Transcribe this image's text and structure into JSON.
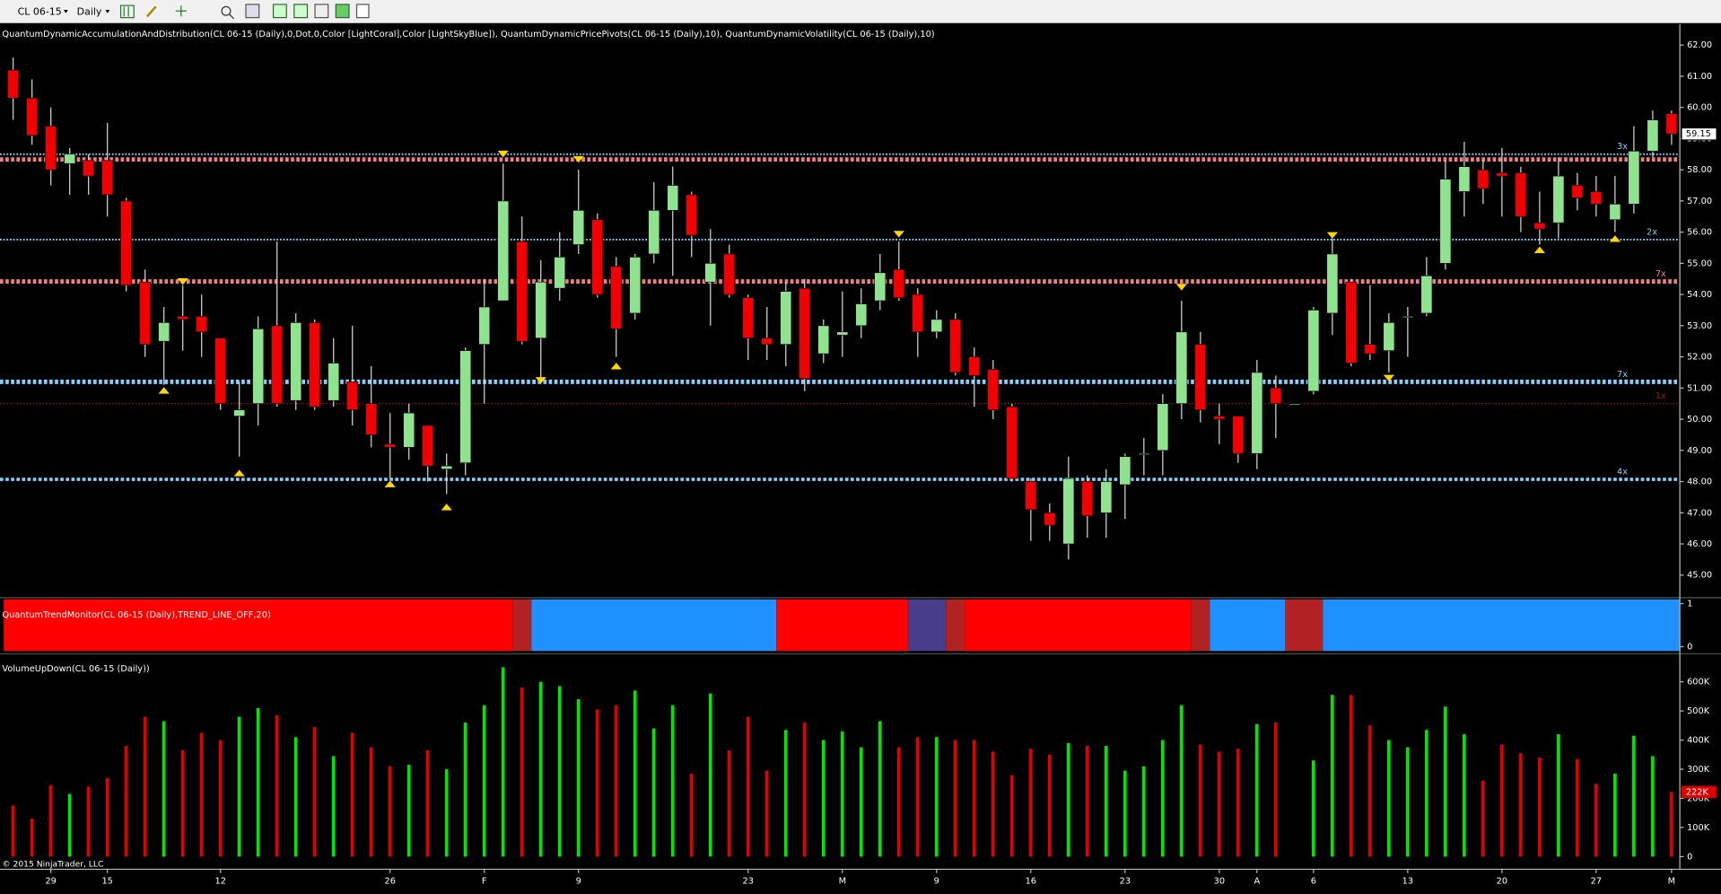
{
  "toolbar": {
    "instrument": "CL 06-15",
    "period": "Daily"
  },
  "footer": "© 2015 NinjaTrader, LLC",
  "chart_data": [
    {
      "type": "candlestick",
      "title": "QuantumDynamicAccumulationAndDistribution(CL 06-15 (Daily),0,Dot,0,Color [LightCoral],Color [LightSkyBlue]), QuantumDynamicPricePivots(CL 06-15 (Daily),10), QuantumDynamicVolatility(CL 06-15 (Daily),10)",
      "categories": [
        null,
        null,
        "29",
        null,
        null,
        "15",
        null,
        null,
        null,
        null,
        null,
        "12",
        null,
        null,
        null,
        null,
        null,
        null,
        null,
        null,
        "26",
        null,
        null,
        null,
        null,
        "F",
        null,
        null,
        null,
        null,
        "9",
        null,
        null,
        null,
        null,
        null,
        null,
        null,
        null,
        "23",
        null,
        null,
        null,
        null,
        "M",
        null,
        null,
        null,
        null,
        "9",
        null,
        null,
        null,
        null,
        "16",
        null,
        null,
        null,
        null,
        "23",
        null,
        null,
        null,
        null,
        "30",
        null,
        "A",
        null,
        null,
        "6",
        null,
        null,
        null,
        null,
        "13",
        null,
        null,
        null,
        null,
        "20",
        null,
        null,
        null,
        null,
        "27",
        null,
        null,
        null,
        "M"
      ],
      "open": [
        61.2,
        60.3,
        59.4,
        58.2,
        58.3,
        58.3,
        57.0,
        54.4,
        52.5,
        53.3,
        53.3,
        52.6,
        50.1,
        50.5,
        53.0,
        50.6,
        53.1,
        50.6,
        51.2,
        50.5,
        49.2,
        49.1,
        49.8,
        48.4,
        48.6,
        52.4,
        53.8,
        55.7,
        52.6,
        54.2,
        55.6,
        56.4,
        54.9,
        53.4,
        55.3,
        56.7,
        57.2,
        54.4,
        55.3,
        53.9,
        52.6,
        52.4,
        54.2,
        52.1,
        52.7,
        53.0,
        53.8,
        54.8,
        54.0,
        52.8,
        53.2,
        52.0,
        51.6,
        50.4,
        48.0,
        47.0,
        46.0,
        48.0,
        47.0,
        47.9,
        48.9,
        49.0,
        50.5,
        52.4,
        50.1,
        50.1,
        48.9,
        51.0,
        50.5,
        50.9,
        53.4,
        54.4,
        52.4,
        52.2,
        53.3,
        53.4,
        55.0,
        57.3,
        58.0,
        57.9,
        57.9,
        56.3,
        56.3,
        57.5,
        57.3,
        56.4,
        56.9,
        58.6,
        59.8
      ],
      "high": [
        61.6,
        60.9,
        60.0,
        58.7,
        58.5,
        59.5,
        57.1,
        54.8,
        53.6,
        54.3,
        54.0,
        52.6,
        51.2,
        53.3,
        55.7,
        53.4,
        53.2,
        52.6,
        53.0,
        51.7,
        50.2,
        50.5,
        49.8,
        48.9,
        52.3,
        54.5,
        58.2,
        56.5,
        55.1,
        56.0,
        58.0,
        56.6,
        55.2,
        55.3,
        57.6,
        58.1,
        57.3,
        56.1,
        55.6,
        54.0,
        53.6,
        54.4,
        54.5,
        53.2,
        54.1,
        54.2,
        55.3,
        55.7,
        54.2,
        53.5,
        53.4,
        52.3,
        51.9,
        50.5,
        48.1,
        47.3,
        48.8,
        48.2,
        48.4,
        48.9,
        49.4,
        50.8,
        53.8,
        52.8,
        50.5,
        50.1,
        51.9,
        51.4,
        50.5,
        53.6,
        55.8,
        54.5,
        54.3,
        53.4,
        53.6,
        55.2,
        58.3,
        58.9,
        58.3,
        58.7,
        58.1,
        57.3,
        58.4,
        57.9,
        57.8,
        57.8,
        59.4,
        59.9,
        59.9
      ],
      "low": [
        59.6,
        58.8,
        57.5,
        57.2,
        57.2,
        56.5,
        54.1,
        52.0,
        51.1,
        52.2,
        52.0,
        50.3,
        48.8,
        49.8,
        50.4,
        50.3,
        50.3,
        50.4,
        49.8,
        49.1,
        48.1,
        48.7,
        48.0,
        47.6,
        48.2,
        50.5,
        53.8,
        52.4,
        51.2,
        53.8,
        55.3,
        53.9,
        52.0,
        53.2,
        55.0,
        54.6,
        55.2,
        53.0,
        53.9,
        51.9,
        51.9,
        51.7,
        50.9,
        51.8,
        52.0,
        52.6,
        53.5,
        53.8,
        52.0,
        52.6,
        51.4,
        50.4,
        50.0,
        48.0,
        46.1,
        46.1,
        45.5,
        46.2,
        46.2,
        46.8,
        48.2,
        48.2,
        50.0,
        49.9,
        49.2,
        48.6,
        48.4,
        49.4,
        50.5,
        50.8,
        52.7,
        51.7,
        51.9,
        51.5,
        52.0,
        53.3,
        54.8,
        56.5,
        56.9,
        56.5,
        56.0,
        55.6,
        55.8,
        56.7,
        56.5,
        56.0,
        56.6,
        58.4,
        58.8
      ],
      "close": [
        60.3,
        59.1,
        58.0,
        58.5,
        57.8,
        57.2,
        54.3,
        52.4,
        53.1,
        53.2,
        52.8,
        50.5,
        50.3,
        52.9,
        50.5,
        53.1,
        50.4,
        51.8,
        50.3,
        49.5,
        49.1,
        50.2,
        48.5,
        48.5,
        52.2,
        53.6,
        57.0,
        52.5,
        54.4,
        55.2,
        56.7,
        54.0,
        52.9,
        55.2,
        56.7,
        57.5,
        55.9,
        55.0,
        54.0,
        52.6,
        52.4,
        54.1,
        51.3,
        53.0,
        52.8,
        53.7,
        54.7,
        53.9,
        52.8,
        53.2,
        51.5,
        51.4,
        50.3,
        48.1,
        47.1,
        46.6,
        48.1,
        46.9,
        48.0,
        48.8,
        48.9,
        50.5,
        52.8,
        50.3,
        50.0,
        48.9,
        51.5,
        50.5,
        50.5,
        53.5,
        55.3,
        51.8,
        52.1,
        53.1,
        53.3,
        54.6,
        57.7,
        58.1,
        57.4,
        57.8,
        56.5,
        56.1,
        57.8,
        57.1,
        56.9,
        56.9,
        58.6,
        59.6,
        59.15
      ],
      "last_price_label": "59.15",
      "up_color": "#8fe38f",
      "down_color": "#f00000",
      "wick_color": "#d8d8d8",
      "ylim": [
        44.33,
        62.67
      ],
      "yticks": [
        {
          "value": 45,
          "label": "45.00"
        },
        {
          "value": 46,
          "label": "46.00"
        },
        {
          "value": 47,
          "label": "47.00"
        },
        {
          "value": 48,
          "label": "48.00"
        },
        {
          "value": 49,
          "label": "49.00"
        },
        {
          "value": 50,
          "label": "50.00"
        },
        {
          "value": 51,
          "label": "51.00"
        },
        {
          "value": 52,
          "label": "52.00"
        },
        {
          "value": 53,
          "label": "53.00"
        },
        {
          "value": 54,
          "label": "54.00"
        },
        {
          "value": 55,
          "label": "55.00"
        },
        {
          "value": 56,
          "label": "56.00"
        },
        {
          "value": 57,
          "label": "57.00"
        },
        {
          "value": 58,
          "label": "58.00"
        },
        {
          "value": 59,
          "label": "59.00"
        },
        {
          "value": 60,
          "label": "60.00"
        },
        {
          "value": 61,
          "label": "61.00"
        },
        {
          "value": 62,
          "label": "62.00"
        }
      ],
      "levels": [
        {
          "value": 58.5,
          "color": "#87cefa",
          "width": 1.5,
          "label": "3x"
        },
        {
          "value": 58.33,
          "color": "#f08080",
          "width": 4
        },
        {
          "value": 55.76,
          "color": "#87cefa",
          "width": 1.5,
          "label": "2x"
        },
        {
          "value": 54.42,
          "color": "#f08080",
          "width": 4,
          "label": "7x"
        },
        {
          "value": 51.2,
          "color": "#87cefa",
          "width": 4,
          "label": "7x"
        },
        {
          "value": 50.5,
          "color": "#a01010",
          "width": 1,
          "label": "1x"
        },
        {
          "value": 48.07,
          "color": "#87cefa",
          "width": 3,
          "label": "4x"
        }
      ],
      "signal_color": "#ffd700",
      "signals": [
        {
          "index": 8,
          "value": 51.03,
          "direction": "up"
        },
        {
          "index": 9,
          "value": 54.31,
          "direction": "down"
        },
        {
          "index": 12,
          "value": 48.38,
          "direction": "up"
        },
        {
          "index": 20,
          "value": 48.03,
          "direction": "up"
        },
        {
          "index": 23,
          "value": 47.29,
          "direction": "up"
        },
        {
          "index": 26,
          "value": 58.4,
          "direction": "down"
        },
        {
          "index": 28,
          "value": 51.14,
          "direction": "down"
        },
        {
          "index": 30,
          "value": 58.23,
          "direction": "down"
        },
        {
          "index": 32,
          "value": 51.81,
          "direction": "up"
        },
        {
          "index": 47,
          "value": 55.83,
          "direction": "down"
        },
        {
          "index": 62,
          "value": 54.13,
          "direction": "down"
        },
        {
          "index": 70,
          "value": 55.79,
          "direction": "down"
        },
        {
          "index": 73,
          "value": 51.21,
          "direction": "down"
        },
        {
          "index": 81,
          "value": 55.54,
          "direction": "up"
        },
        {
          "index": 85,
          "value": 55.9,
          "direction": "up"
        }
      ]
    },
    {
      "type": "band",
      "title": "QuantumTrendMonitor(CL 06-15 (Daily),TREND_LINE_OFF,20)",
      "ylim": [
        -0.1,
        1.1
      ],
      "yticks": [
        0,
        1
      ],
      "segments": [
        {
          "from": 0,
          "to": 26,
          "color": "#ff0000"
        },
        {
          "from": 27,
          "to": 27,
          "color": "#b22222"
        },
        {
          "from": 28,
          "to": 40,
          "color": "#1e90ff"
        },
        {
          "from": 41,
          "to": 47,
          "color": "#ff0000"
        },
        {
          "from": 48,
          "to": 49,
          "color": "#483d8b"
        },
        {
          "from": 50,
          "to": 50,
          "color": "#b22222"
        },
        {
          "from": 51,
          "to": 62,
          "color": "#ff0000"
        },
        {
          "from": 63,
          "to": 63,
          "color": "#b22222"
        },
        {
          "from": 64,
          "to": 67,
          "color": "#1e90ff"
        },
        {
          "from": 68,
          "to": 69,
          "color": "#b22222"
        },
        {
          "from": 70,
          "to": 88,
          "color": "#1e90ff"
        }
      ]
    },
    {
      "type": "bar",
      "title": "VolumeUpDown(CL 06-15 (Daily))",
      "values": [
        175000,
        130000,
        245000,
        215000,
        240000,
        270000,
        380000,
        480000,
        465000,
        365000,
        425000,
        400000,
        480000,
        510000,
        485000,
        410000,
        445000,
        345000,
        425000,
        375000,
        310000,
        315000,
        365000,
        300000,
        460000,
        520000,
        650000,
        580000,
        600000,
        585000,
        540000,
        505000,
        520000,
        570000,
        440000,
        520000,
        285000,
        560000,
        365000,
        480000,
        295000,
        435000,
        460000,
        400000,
        430000,
        375000,
        465000,
        375000,
        410000,
        410000,
        400000,
        400000,
        360000,
        280000,
        370000,
        350000,
        390000,
        380000,
        380000,
        295000,
        310000,
        400000,
        520000,
        385000,
        360000,
        370000,
        455000,
        460000,
        0,
        330000,
        555000,
        555000,
        450000,
        400000,
        375000,
        435000,
        515000,
        420000,
        260000,
        385000,
        355000,
        340000,
        420000,
        335000,
        250000,
        285000,
        415000,
        345000,
        222000
      ],
      "last_value_label": "222K",
      "up_color": "#00e600",
      "down_color": "#e00000",
      "ylim": [
        -41500,
        687000
      ],
      "yticks": [
        0,
        {
          "value": 100000,
          "label": "100K"
        },
        {
          "value": 200000,
          "label": "200K"
        },
        {
          "value": 300000,
          "label": "300K"
        },
        {
          "value": 400000,
          "label": "400K"
        },
        {
          "value": 500000,
          "label": "500K"
        },
        {
          "value": 600000,
          "label": "600K"
        }
      ]
    }
  ]
}
